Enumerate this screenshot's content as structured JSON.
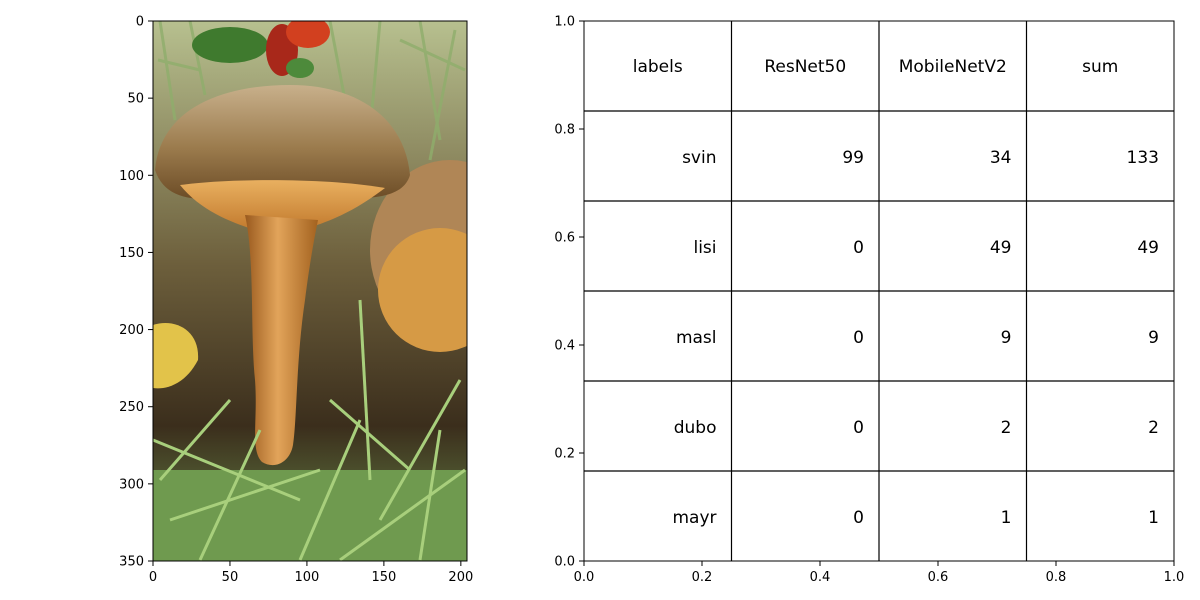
{
  "chart_data": [
    {
      "type": "image",
      "picture": "mushroom-photo",
      "x_ticks": [
        "0",
        "50",
        "100",
        "150",
        "200"
      ],
      "y_ticks": [
        "0",
        "50",
        "100",
        "150",
        "200",
        "250",
        "300",
        "350"
      ],
      "xlim": [
        0,
        204
      ],
      "ylim": [
        350,
        0
      ]
    },
    {
      "type": "table",
      "columns": [
        "labels",
        "ResNet50",
        "MobileNetV2",
        "sum"
      ],
      "rows": [
        [
          "svin",
          "99",
          "34",
          "133"
        ],
        [
          "lisi",
          "0",
          "49",
          "49"
        ],
        [
          "masl",
          "0",
          "9",
          "9"
        ],
        [
          "dubo",
          "0",
          "2",
          "2"
        ],
        [
          "mayr",
          "0",
          "1",
          "1"
        ]
      ],
      "x_ticks": [
        "0.0",
        "0.2",
        "0.4",
        "0.6",
        "0.8",
        "1.0"
      ],
      "y_ticks": [
        "0.0",
        "0.2",
        "0.4",
        "0.6",
        "0.8",
        "1.0"
      ],
      "xlim": [
        0,
        1
      ],
      "ylim": [
        0,
        1
      ]
    }
  ],
  "colors": {
    "grass": "#6f9a4f",
    "cap": "#a9865a",
    "stem": "#c27a2e",
    "berry": "#c8321e"
  }
}
